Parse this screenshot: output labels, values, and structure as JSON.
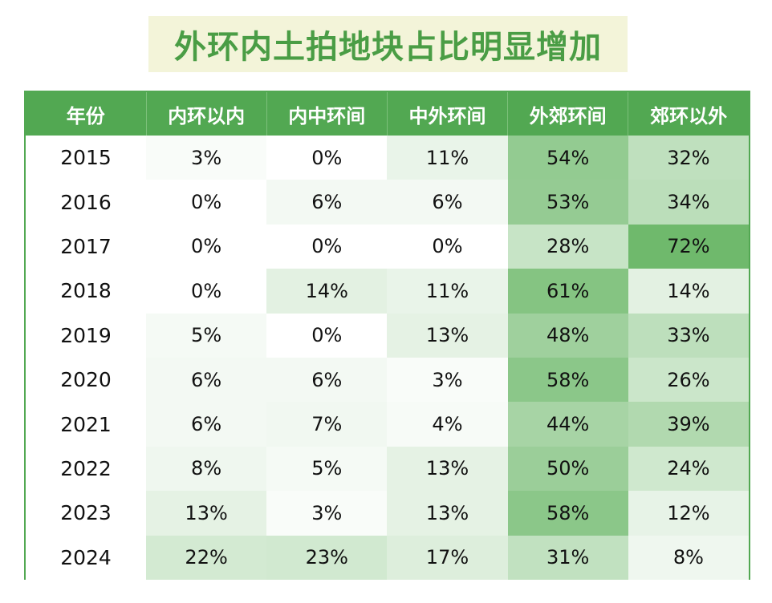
{
  "title": "外环内土拍地块占比明显增加",
  "colors": {
    "header_bg": "#52a852",
    "title_bg": "#f3f4d9",
    "title_text": "#4a9d45",
    "heat_low": "#ffffff",
    "heat_high": "#6fb96c"
  },
  "chart_data": {
    "type": "table",
    "title": "外环内土拍地块占比明显增加",
    "columns": [
      "年份",
      "内环以内",
      "内中环间",
      "中外环间",
      "外郊环间",
      "郊环以外"
    ],
    "rows": [
      {
        "year": "2015",
        "values": [
          "3%",
          "0%",
          "11%",
          "54%",
          "32%"
        ]
      },
      {
        "year": "2016",
        "values": [
          "0%",
          "6%",
          "6%",
          "53%",
          "34%"
        ]
      },
      {
        "year": "2017",
        "values": [
          "0%",
          "0%",
          "0%",
          "28%",
          "72%"
        ]
      },
      {
        "year": "2018",
        "values": [
          "0%",
          "14%",
          "11%",
          "61%",
          "14%"
        ]
      },
      {
        "year": "2019",
        "values": [
          "5%",
          "0%",
          "13%",
          "48%",
          "33%"
        ]
      },
      {
        "year": "2020",
        "values": [
          "6%",
          "6%",
          "3%",
          "58%",
          "26%"
        ]
      },
      {
        "year": "2021",
        "values": [
          "6%",
          "7%",
          "4%",
          "44%",
          "39%"
        ]
      },
      {
        "year": "2022",
        "values": [
          "8%",
          "5%",
          "13%",
          "50%",
          "24%"
        ]
      },
      {
        "year": "2023",
        "values": [
          "13%",
          "3%",
          "13%",
          "58%",
          "12%"
        ]
      },
      {
        "year": "2024",
        "values": [
          "22%",
          "23%",
          "17%",
          "31%",
          "8%"
        ]
      }
    ]
  }
}
